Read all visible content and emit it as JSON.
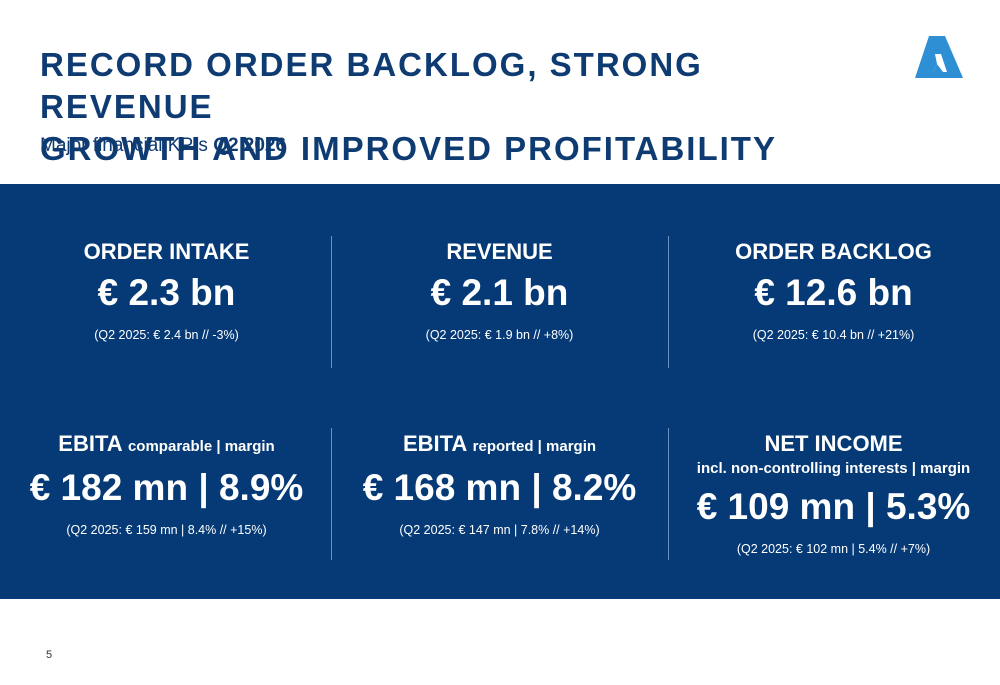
{
  "header": {
    "title_line1": "RECORD ORDER BACKLOG, STRONG REVENUE",
    "title_line2": "GROWTH AND IMPROVED PROFITABILITY",
    "subtitle_prefix": "Major financial KPIs",
    "subtitle_period": "Q2 2026",
    "logo_icon": "company-logo-triangle",
    "logo_color": "#2f8fd5"
  },
  "colors": {
    "title": "#0f3b73",
    "panel_background": "#063a76",
    "text_on_panel": "#ffffff"
  },
  "kpis": [
    {
      "label": "ORDER INTAKE",
      "value": "€ 2.3 bn",
      "compare": "(Q2 2025: € 2.4 bn // -3%)"
    },
    {
      "label": "REVENUE",
      "value": "€ 2.1 bn",
      "compare": "(Q2 2025: € 1.9 bn // +8%)"
    },
    {
      "label": "ORDER BACKLOG",
      "value": "€ 12.6 bn",
      "compare": "(Q2 2025: € 10.4 bn // +21%)"
    },
    {
      "label": "EBITA",
      "label_suffix": "comparable | margin",
      "value": "€ 182 mn | 8.9%",
      "compare": "(Q2 2025: € 159 mn | 8.4% // +15%)"
    },
    {
      "label": "EBITA",
      "label_suffix": "reported | margin",
      "value": "€ 168 mn | 8.2%",
      "compare": "(Q2 2025: € 147 mn | 7.8% // +14%)"
    },
    {
      "label": "NET INCOME",
      "sublabel": "incl. non-controlling interests | margin",
      "value": "€ 109 mn | 5.3%",
      "compare": "(Q2 2025: € 102 mn | 5.4% // +7%)"
    }
  ],
  "footer": {
    "page_number": "5"
  }
}
